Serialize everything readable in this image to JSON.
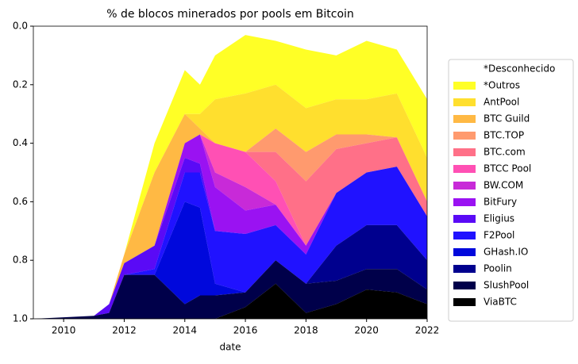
{
  "chart_data": {
    "type": "stacked-area",
    "title": "% de blocos minerados por pools em Bitcoin",
    "x_label": "date",
    "x": [
      2009,
      2011,
      2011.5,
      2012,
      2013,
      2014,
      2014.5,
      2015,
      2016,
      2017,
      2018,
      2019,
      2020,
      2021,
      2022
    ],
    "xlim": [
      2009,
      2022
    ],
    "xticks": [
      2010,
      2012,
      2014,
      2016,
      2018,
      2020,
      2022
    ],
    "ylim": [
      1,
      0
    ],
    "yticks": [
      {
        "value": 0,
        "label": "0.0"
      },
      0.2,
      0.4,
      0.6,
      0.8,
      {
        "value": 1,
        "label": "1.0"
      }
    ],
    "legend": "outside-right",
    "series": [
      {
        "name": "*Desconhecido",
        "color": "#ffffff",
        "values": [
          1,
          0.99,
          0.95,
          0.78,
          0.4,
          0.15,
          0.2,
          0.1,
          0.03,
          0.05,
          0.08,
          0.1,
          0.05,
          0.08,
          0.25
        ]
      },
      {
        "name": "*Outros",
        "color": "#ffff26",
        "values": [
          0,
          0,
          0,
          0,
          0.1,
          0.15,
          0.1,
          0.15,
          0.2,
          0.15,
          0.2,
          0.15,
          0.2,
          0.15,
          0.2
        ]
      },
      {
        "name": "AntPool",
        "color": "#ffdf2e",
        "values": [
          0,
          0,
          0,
          0,
          0,
          0,
          0.05,
          0.15,
          0.2,
          0.15,
          0.15,
          0.12,
          0.12,
          0.15,
          0.15
        ]
      },
      {
        "name": "BTC Guild",
        "color": "#ffb944",
        "values": [
          0,
          0,
          0,
          0.03,
          0.25,
          0.1,
          0.02,
          0,
          0,
          0,
          0,
          0,
          0,
          0,
          0
        ]
      },
      {
        "name": "BTC.TOP",
        "color": "#ff9a6e",
        "values": [
          0,
          0,
          0,
          0,
          0,
          0,
          0,
          0,
          0,
          0.08,
          0.1,
          0.05,
          0.03,
          0,
          0
        ]
      },
      {
        "name": "BTC.com",
        "color": "#ff7088",
        "values": [
          0,
          0,
          0,
          0,
          0,
          0,
          0,
          0,
          0,
          0.1,
          0.22,
          0.15,
          0.1,
          0.1,
          0.05
        ]
      },
      {
        "name": "BTCC Pool",
        "color": "#ff50b4",
        "values": [
          0,
          0,
          0,
          0,
          0,
          0,
          0,
          0.1,
          0.12,
          0.08,
          0,
          0,
          0,
          0,
          0
        ]
      },
      {
        "name": "BW.COM",
        "color": "#c82ad8",
        "values": [
          0,
          0,
          0,
          0,
          0,
          0,
          0,
          0.05,
          0.08,
          0,
          0,
          0,
          0,
          0,
          0
        ]
      },
      {
        "name": "BitFury",
        "color": "#9a12f2",
        "values": [
          0,
          0,
          0,
          0,
          0,
          0.05,
          0.1,
          0.15,
          0.08,
          0.07,
          0.03,
          0,
          0,
          0,
          0
        ]
      },
      {
        "name": "Eligius",
        "color": "#5a0af6",
        "values": [
          0,
          0,
          0.03,
          0.04,
          0.08,
          0.05,
          0.03,
          0,
          0,
          0,
          0,
          0,
          0,
          0,
          0
        ]
      },
      {
        "name": "F2Pool",
        "color": "#2012ff",
        "values": [
          0,
          0,
          0,
          0,
          0.02,
          0.1,
          0.12,
          0.18,
          0.2,
          0.12,
          0.1,
          0.18,
          0.18,
          0.2,
          0.15
        ]
      },
      {
        "name": "GHash.IO",
        "color": "#0008dc",
        "values": [
          0,
          0,
          0,
          0,
          0,
          0.35,
          0.3,
          0.04,
          0,
          0,
          0,
          0,
          0,
          0,
          0
        ]
      },
      {
        "name": "Poolin",
        "color": "#00008e",
        "values": [
          0,
          0,
          0,
          0,
          0,
          0,
          0,
          0,
          0,
          0,
          0,
          0.12,
          0.15,
          0.15,
          0.1
        ]
      },
      {
        "name": "SlushPool",
        "color": "#00004a",
        "values": [
          0,
          0.01,
          0.02,
          0.15,
          0.15,
          0.05,
          0.08,
          0.08,
          0.05,
          0.08,
          0.1,
          0.08,
          0.07,
          0.08,
          0.05
        ]
      },
      {
        "name": "ViaBTC",
        "color": "#000000",
        "values": [
          0,
          0,
          0,
          0,
          0,
          0,
          0,
          0,
          0.04,
          0.12,
          0.02,
          0.05,
          0.1,
          0.09,
          0.05
        ]
      }
    ]
  }
}
